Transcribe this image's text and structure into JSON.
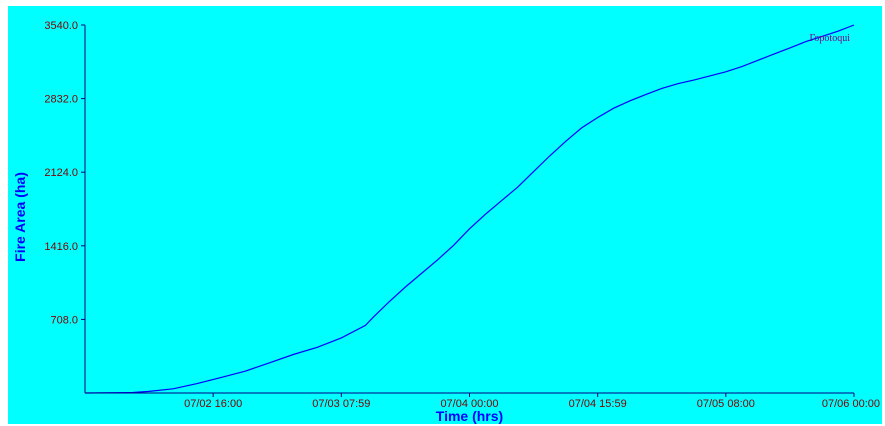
{
  "chart_data": {
    "type": "line",
    "title": "",
    "xlabel": "Time (hrs)",
    "ylabel": "Fire Area (ha)",
    "x_ticks": [
      "07/02 16:00",
      "07/03 07:59",
      "07/04 00:00",
      "07/04 15:59",
      "07/05 08:00",
      "07/06 00:00"
    ],
    "x_tick_hours": [
      40,
      56,
      72,
      88,
      104,
      120
    ],
    "xlim_hours": [
      24,
      120
    ],
    "y_ticks": [
      "708.0",
      "1416.0",
      "2124.0",
      "2832.0",
      "3540.0"
    ],
    "ylim": [
      0,
      3540
    ],
    "grid": false,
    "legend_position": "top-right",
    "series": [
      {
        "name": "Гоpotoqui",
        "x_hours": [
          24,
          30,
          32,
          35,
          38,
          41,
          44,
          47,
          50,
          53,
          56,
          59,
          60,
          62,
          64,
          66,
          68,
          70,
          72,
          74,
          76,
          78,
          80,
          82,
          84,
          86,
          88,
          90,
          92,
          94,
          96,
          98,
          100,
          102,
          104,
          106,
          108,
          110,
          112,
          114,
          116,
          118,
          120
        ],
        "y": [
          0,
          5,
          15,
          40,
          90,
          150,
          210,
          290,
          370,
          440,
          530,
          650,
          730,
          880,
          1020,
          1150,
          1280,
          1420,
          1580,
          1720,
          1850,
          1980,
          2130,
          2280,
          2420,
          2550,
          2650,
          2740,
          2810,
          2870,
          2930,
          2975,
          3010,
          3050,
          3090,
          3140,
          3200,
          3260,
          3320,
          3380,
          3430,
          3480,
          3540
        ]
      }
    ]
  },
  "colors": {
    "plot_background": "#00ffff",
    "page_background": "#ffffff",
    "frame": "#000080",
    "series_line": "#0000ff",
    "tick_label": "#800000",
    "axis_title": "#0000ff",
    "legend_text": "#800080"
  }
}
